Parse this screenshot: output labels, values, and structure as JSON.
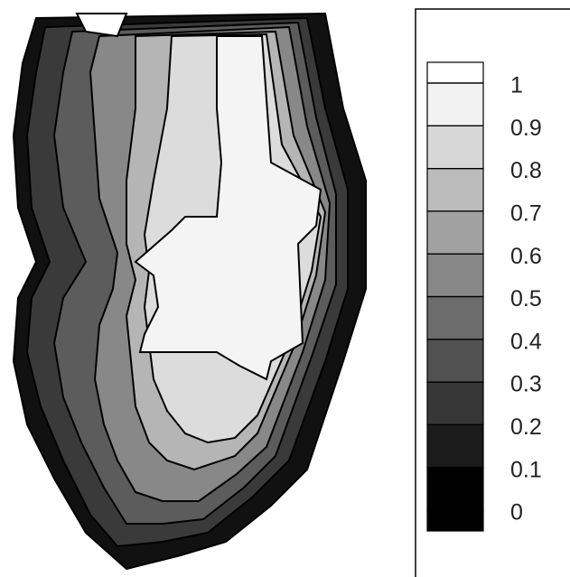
{
  "chart_data": {
    "type": "contour",
    "clim": [
      0,
      1
    ],
    "colorbar_ticks": [
      0,
      0.1,
      0.2,
      0.3,
      0.4,
      0.5,
      0.6,
      0.7,
      0.8,
      0.9,
      1
    ]
  }
}
